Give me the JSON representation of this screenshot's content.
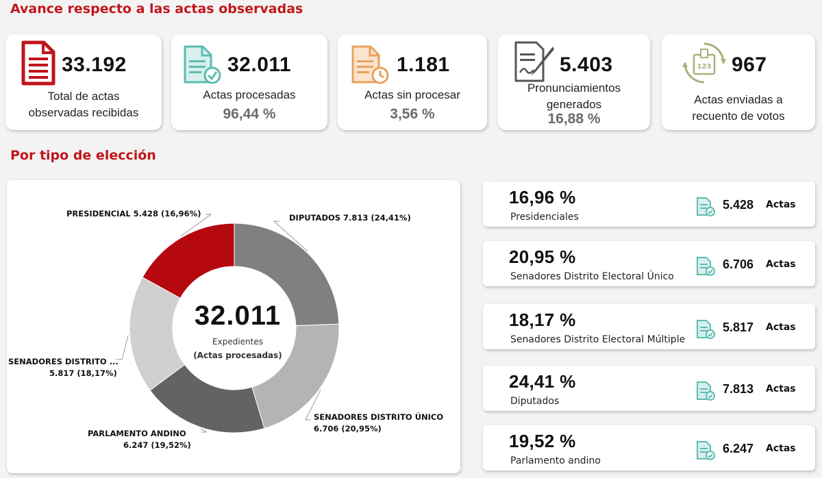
{
  "headings": {
    "progress": "Avance respecto a las actas observadas",
    "by_type": "Por tipo de elección"
  },
  "kpis": [
    {
      "value": "33.192",
      "label_line1": "Total de actas",
      "label_line2": "observadas recibidas",
      "pct": "",
      "icon": "document-icon",
      "color": "#c0161b"
    },
    {
      "value": "32.011",
      "label_line1": "Actas procesadas",
      "label_line2": "",
      "pct": "96,44 %",
      "icon": "document-check-icon",
      "color": "#5bbcb0"
    },
    {
      "value": "1.181",
      "label_line1": "Actas sin procesar",
      "label_line2": "",
      "pct": "3,56 %",
      "icon": "document-clock-icon",
      "color": "#e8a25c"
    },
    {
      "value": "5.403",
      "label_line1": "Pronunciamientos",
      "label_line2": "generados",
      "pct": "16,88 %",
      "icon": "contract-pen-icon",
      "color": "#555555"
    },
    {
      "value": "967",
      "label_line1": "Actas enviadas a",
      "label_line2": "recuento de votos",
      "pct": "",
      "icon": "ballot-box-recount-icon",
      "color": "#a8b07a"
    }
  ],
  "donut": {
    "center_value": "32.011",
    "center_label1": "Expedientes",
    "center_label2": "(Actas procesadas)",
    "labels": {
      "presidencial": "PRESIDENCIAL 5.428 (16,96%)",
      "diputados": "DIPUTADOS 7.813 (24,41%)",
      "senadores_unico_1": "SENADORES DISTRITO ÚNICO",
      "senadores_unico_2": "6.706 (20,95%)",
      "parlamento_1": "PARLAMENTO ANDINO",
      "parlamento_2": "6.247 (19,52%)",
      "senadores_multi_1": "SENADORES DISTRITO ...",
      "senadores_multi_2": "5.817 (18,17%)"
    }
  },
  "chart_data": {
    "type": "pie",
    "categories": [
      "DIPUTADOS",
      "SENADORES DISTRITO ÚNICO",
      "PARLAMENTO ANDINO",
      "SENADORES DISTRITO MÚLTIPLE",
      "PRESIDENCIAL"
    ],
    "values": [
      7813,
      6706,
      6247,
      5817,
      5428
    ],
    "percent": [
      24.41,
      20.95,
      19.52,
      18.17,
      16.96
    ],
    "colors": [
      "#808080",
      "#b4b4b4",
      "#636363",
      "#d0d0d0",
      "#b5090f"
    ],
    "donut": true
  },
  "election_types": [
    {
      "pct": "16,96 %",
      "name": "Presidenciales",
      "count": "5.428",
      "unit": "Actas"
    },
    {
      "pct": "20,95 %",
      "name": "Senadores Distrito Electoral Único",
      "count": "6.706",
      "unit": "Actas"
    },
    {
      "pct": "18,17 %",
      "name": "Senadores Distrito Electoral Múltiple",
      "count": "5.817",
      "unit": "Actas"
    },
    {
      "pct": "24,41 %",
      "name": "Diputados",
      "count": "7.813",
      "unit": "Actas"
    },
    {
      "pct": "19,52 %",
      "name": "Parlamento andino",
      "count": "6.247",
      "unit": "Actas"
    }
  ]
}
